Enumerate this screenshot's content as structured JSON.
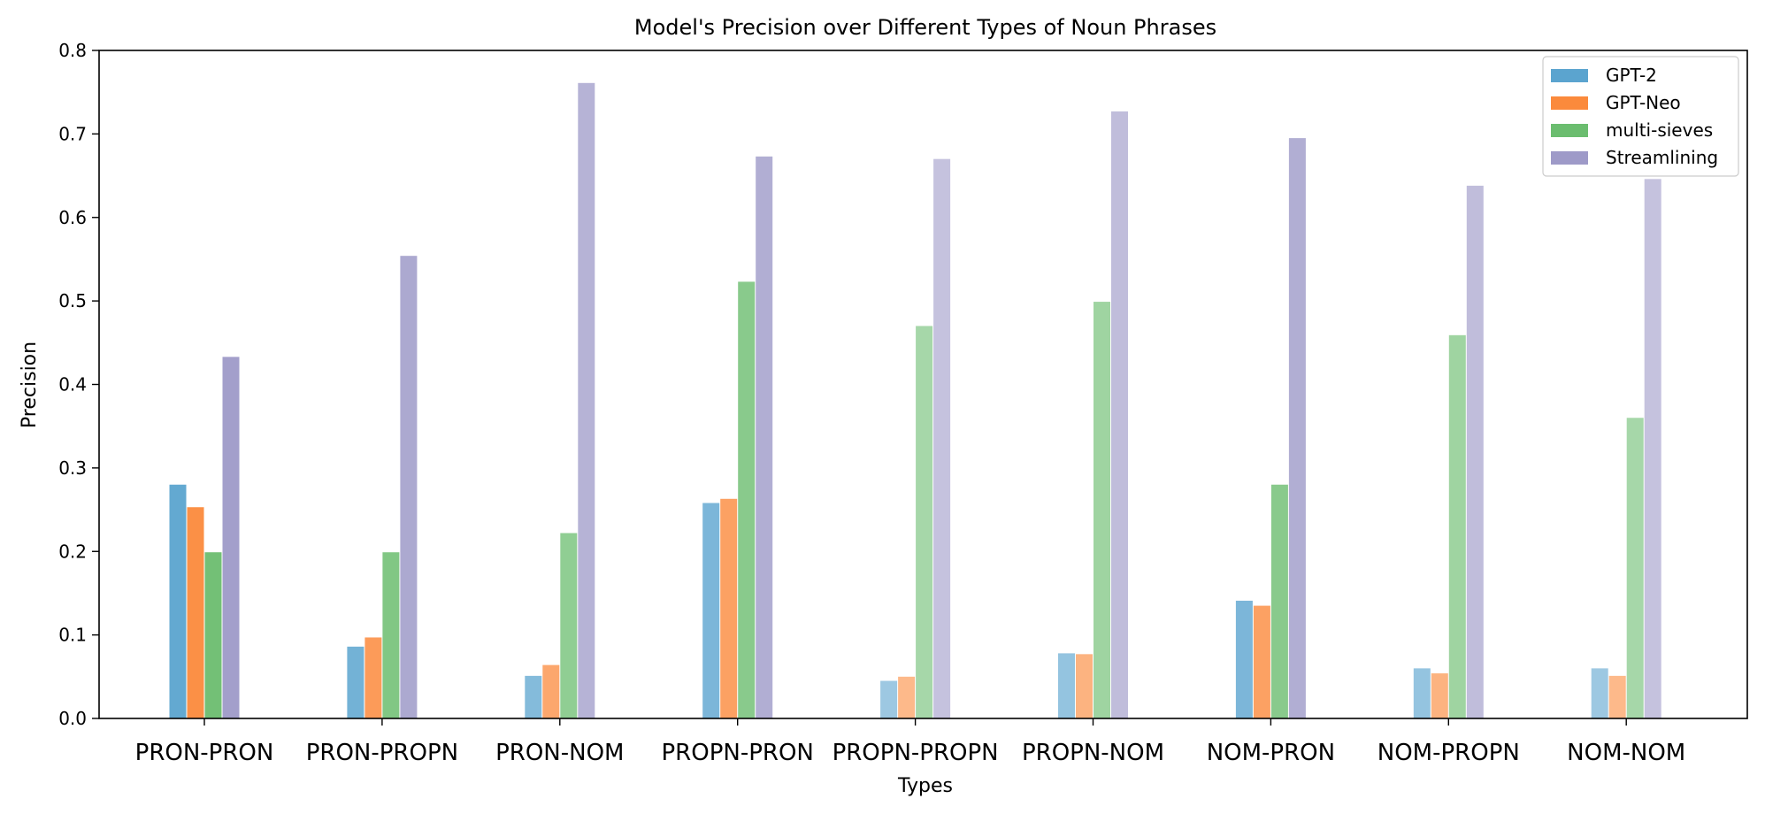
{
  "chart_data": {
    "type": "bar",
    "title": "Model's Precision over Different Types of Noun Phrases",
    "xlabel": "Types",
    "ylabel": "Precision",
    "ylim": [
      0,
      0.8
    ],
    "yticks": [
      "0.0",
      "0.1",
      "0.2",
      "0.3",
      "0.4",
      "0.5",
      "0.6",
      "0.7",
      "0.8"
    ],
    "ytick_values": [
      0,
      0.1,
      0.2,
      0.3,
      0.4,
      0.5,
      0.6,
      0.7,
      0.8
    ],
    "categories": [
      "PRON-PRON",
      "PRON-PROPN",
      "PRON-NOM",
      "PROPN-PRON",
      "PROPN-PROPN",
      "PROPN-NOM",
      "NOM-PRON",
      "NOM-PROPN",
      "NOM-NOM"
    ],
    "category_opacity": [
      0.95,
      0.85,
      0.75,
      0.8,
      0.6,
      0.65,
      0.8,
      0.65,
      0.6
    ],
    "series": [
      {
        "name": "GPT-2",
        "color": "#5ba4cf",
        "values": [
          0.28,
          0.086,
          0.051,
          0.258,
          0.045,
          0.078,
          0.141,
          0.06,
          0.06
        ]
      },
      {
        "name": "GPT-Neo",
        "color": "#fb8a3c",
        "values": [
          0.253,
          0.097,
          0.064,
          0.263,
          0.05,
          0.077,
          0.135,
          0.054,
          0.051
        ]
      },
      {
        "name": "multi-sieves",
        "color": "#6bbd6f",
        "values": [
          0.199,
          0.199,
          0.222,
          0.523,
          0.47,
          0.499,
          0.28,
          0.459,
          0.36
        ]
      },
      {
        "name": "Streamlining",
        "color": "#9e9ac8",
        "values": [
          0.433,
          0.554,
          0.761,
          0.673,
          0.67,
          0.727,
          0.695,
          0.638,
          0.646
        ]
      }
    ],
    "legend": {
      "position": "top-right"
    },
    "grid": false
  }
}
